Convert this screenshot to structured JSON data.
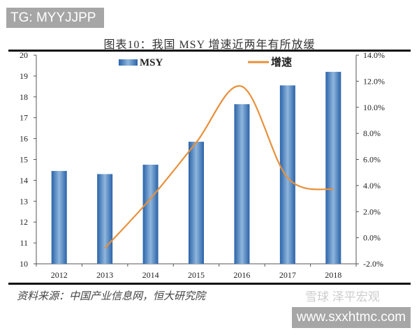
{
  "watermark_top": "TG: MYYJJPP",
  "watermark_bottom": "www.sxxhtmc.com",
  "watermark_logo": "雪球 泽平宏观",
  "source": "资料来源：中国产业信息网，恒大研究院",
  "chart_data": {
    "type": "bar+line",
    "title": "图表10：我国 MSY 增速近两年有所放缓",
    "categories": [
      "2012",
      "2013",
      "2014",
      "2015",
      "2016",
      "2017",
      "2018"
    ],
    "series": [
      {
        "name": "MSY",
        "type": "bar",
        "axis": "left",
        "color": "#3a78b8",
        "values": [
          14.45,
          14.3,
          14.75,
          15.85,
          17.65,
          18.55,
          19.2
        ]
      },
      {
        "name": "增速",
        "type": "line",
        "axis": "right",
        "color": "#e8903a",
        "values": [
          null,
          -0.8,
          3.0,
          7.3,
          11.6,
          4.6,
          3.7
        ]
      }
    ],
    "left_axis": {
      "ylim": [
        10,
        20
      ],
      "ticks": [
        "10",
        "11",
        "12",
        "13",
        "14",
        "15",
        "16",
        "17",
        "18",
        "19",
        "20"
      ]
    },
    "right_axis": {
      "ylim": [
        -2,
        14
      ],
      "ticks": [
        "-2.0%",
        "0.0%",
        "2.0%",
        "4.0%",
        "6.0%",
        "8.0%",
        "10.0%",
        "12.0%",
        "14.0%"
      ]
    },
    "legend": "top",
    "grid": false
  }
}
